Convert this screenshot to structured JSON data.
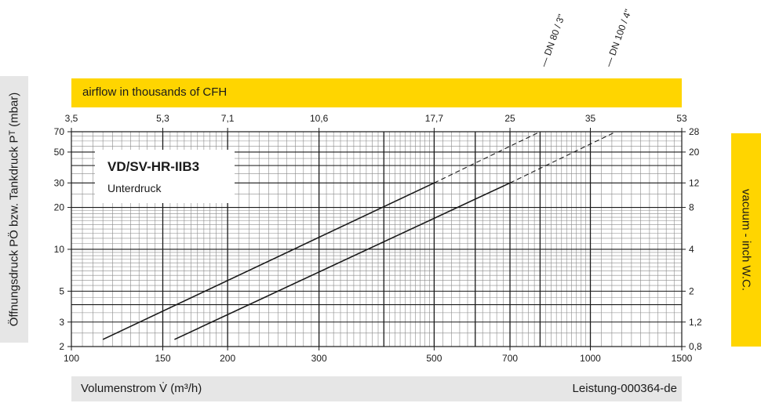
{
  "top_band": {
    "text": "airflow in thousands of CFH"
  },
  "right_band": {
    "text": "vacuum  - inch W.C."
  },
  "left_band": {
    "text": "Öffnungsdruck PÖ bzw. Tankdruck Pᵀ (mbar)"
  },
  "bottom_band": {
    "xlabel": "Volumenstrom V̇ (m³/h)",
    "doc_id": "Leistung-000364-de"
  },
  "label_box": {
    "title": "VD/SV-HR-IIB3",
    "subtitle": "Unterdruck"
  },
  "colors": {
    "accent": "#ffd500",
    "panel": "#e6e6e6",
    "line": "#1a1a1a"
  },
  "chart_data": {
    "type": "line",
    "x_scale": "log",
    "y_scale": "log",
    "xlim": [
      100,
      1500
    ],
    "ylim": [
      2,
      70
    ],
    "grid": true,
    "bottom_ticks": [
      {
        "v": 100,
        "label": "100"
      },
      {
        "v": 150,
        "label": "150"
      },
      {
        "v": 200,
        "label": "200"
      },
      {
        "v": 300,
        "label": "300"
      },
      {
        "v": 500,
        "label": "500"
      },
      {
        "v": 700,
        "label": "700"
      },
      {
        "v": 1000,
        "label": "1000"
      },
      {
        "v": 1500,
        "label": "1500"
      }
    ],
    "top_ticks": [
      {
        "v": 100,
        "label": "3,5"
      },
      {
        "v": 150,
        "label": "5,3"
      },
      {
        "v": 200,
        "label": "7,1"
      },
      {
        "v": 300,
        "label": "10,6"
      },
      {
        "v": 500,
        "label": "17,7"
      },
      {
        "v": 700,
        "label": "25"
      },
      {
        "v": 1000,
        "label": "35"
      },
      {
        "v": 1500,
        "label": "53"
      }
    ],
    "left_ticks": [
      {
        "v": 2,
        "label": "2"
      },
      {
        "v": 3,
        "label": "3"
      },
      {
        "v": 5,
        "label": "5"
      },
      {
        "v": 10,
        "label": "10"
      },
      {
        "v": 20,
        "label": "20"
      },
      {
        "v": 30,
        "label": "30"
      },
      {
        "v": 50,
        "label": "50"
      },
      {
        "v": 70,
        "label": "70"
      }
    ],
    "right_ticks": [
      {
        "v": 2,
        "label": "0,8"
      },
      {
        "v": 3,
        "label": "1,2"
      },
      {
        "v": 5,
        "label": "2"
      },
      {
        "v": 10,
        "label": "4"
      },
      {
        "v": 20,
        "label": "8"
      },
      {
        "v": 30,
        "label": "12"
      },
      {
        "v": 50,
        "label": "20"
      },
      {
        "v": 70,
        "label": "28"
      }
    ],
    "series": [
      {
        "name": "DN 80 / 3\"",
        "x_end_marker": 810,
        "solid": [
          [
            115,
            2.25
          ],
          [
            500,
            30
          ]
        ],
        "dashed": [
          [
            500,
            30
          ],
          [
            800,
            70
          ]
        ]
      },
      {
        "name": "DN 100 / 4\"",
        "x_end_marker": 1080,
        "solid": [
          [
            158,
            2.25
          ],
          [
            700,
            30
          ]
        ],
        "dashed": [
          [
            700,
            30
          ],
          [
            1120,
            70
          ]
        ]
      }
    ]
  }
}
